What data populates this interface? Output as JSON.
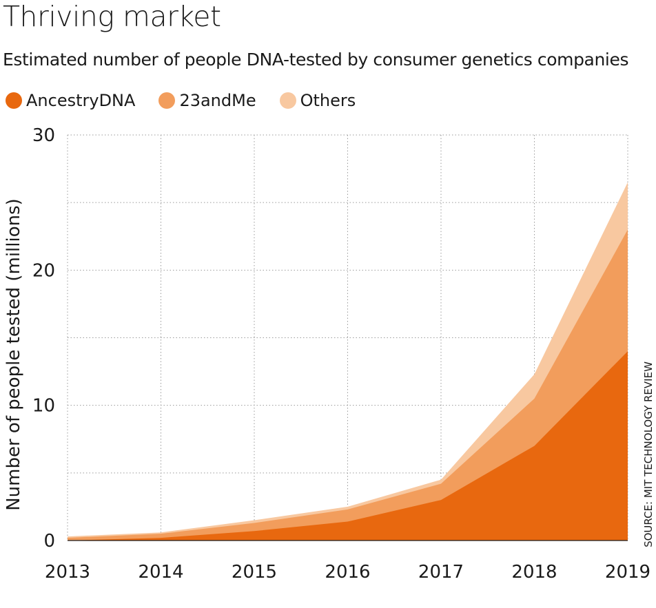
{
  "title": "Thriving market",
  "subtitle": "Estimated number of people DNA-tested by consumer genetics companies",
  "source": "SOURCE: MIT TECHNOLOGY REVIEW",
  "legend": [
    {
      "label": "AncestryDNA",
      "color": "#e8680f"
    },
    {
      "label": "23andMe",
      "color": "#f29d5c"
    },
    {
      "label": "Others",
      "color": "#f8c8a0"
    }
  ],
  "chart_data": {
    "type": "area",
    "stacked": true,
    "x": [
      "2013",
      "2014",
      "2015",
      "2016",
      "2017",
      "2018",
      "2019"
    ],
    "series": [
      {
        "name": "AncestryDNA",
        "color": "#e8680f",
        "values": [
          0.0,
          0.2,
          0.7,
          1.4,
          3.0,
          7.0,
          14.0
        ]
      },
      {
        "name": "23andMe",
        "color": "#f29d5c",
        "values": [
          0.2,
          0.3,
          0.6,
          0.9,
          1.2,
          3.5,
          9.0
        ]
      },
      {
        "name": "Others",
        "color": "#f8c8a0",
        "values": [
          0.1,
          0.1,
          0.2,
          0.2,
          0.3,
          1.8,
          3.5
        ]
      }
    ],
    "ylabel": "Number of people tested (millions)",
    "ylim": [
      0,
      30
    ],
    "yticks": [
      "0",
      "10",
      "20",
      "30"
    ],
    "grid": true
  }
}
